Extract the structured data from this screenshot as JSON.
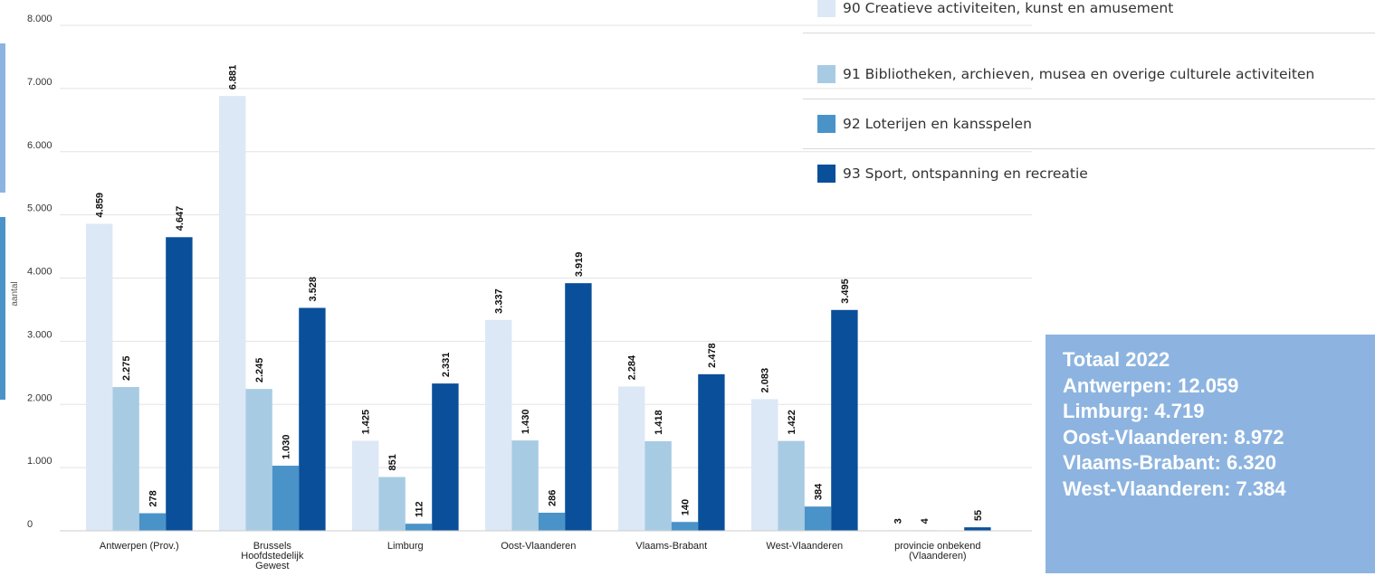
{
  "chart_data": {
    "type": "bar",
    "ylabel": "aantal",
    "ylim": [
      0,
      8000
    ],
    "yticks": [
      0,
      1000,
      2000,
      3000,
      4000,
      5000,
      6000,
      7000,
      8000
    ],
    "ytick_labels": [
      "0",
      "1.000",
      "2.000",
      "3.000",
      "4.000",
      "5.000",
      "6.000",
      "7.000",
      "8.000"
    ],
    "grid": true,
    "legend_position": "top-right",
    "categories": [
      [
        "Antwerpen (Prov.)"
      ],
      [
        "Brussels",
        "Hoofdstedelijk",
        "Gewest"
      ],
      [
        "Limburg"
      ],
      [
        "Oost-Vlaanderen"
      ],
      [
        "Vlaams-Brabant"
      ],
      [
        "West-Vlaanderen"
      ],
      [
        "provincie onbekend",
        "(Vlaanderen)"
      ]
    ],
    "series": [
      {
        "name": "90 Creatieve activiteiten, kunst en amusement",
        "color": "#dce8f5",
        "values": [
          4859,
          6881,
          1425,
          3337,
          2284,
          2083,
          3
        ],
        "labels": [
          "4.859",
          "6.881",
          "1.425",
          "3.337",
          "2.284",
          "2.083",
          "3"
        ]
      },
      {
        "name": "91 Bibliotheken, archieven, musea en overige culturele activiteiten",
        "color": "#a8cbe4",
        "values": [
          2275,
          2245,
          851,
          1430,
          1418,
          1422,
          4
        ],
        "labels": [
          "2.275",
          "2.245",
          "851",
          "1.430",
          "1.418",
          "1.422",
          "4"
        ]
      },
      {
        "name": "92 Loterijen en kansspelen",
        "color": "#4a93c9",
        "values": [
          278,
          1030,
          112,
          286,
          140,
          384,
          null
        ],
        "labels": [
          "278",
          "1.030",
          "112",
          "286",
          "140",
          "384",
          null
        ]
      },
      {
        "name": "93 Sport, ontspanning en recreatie",
        "color": "#0a4f9a",
        "values": [
          4647,
          3528,
          2331,
          3919,
          2478,
          3495,
          55
        ],
        "labels": [
          "4.647",
          "3.528",
          "2.331",
          "3.919",
          "2.478",
          "3.495",
          "55"
        ]
      }
    ]
  },
  "totals_box": {
    "color": "#8db4e0",
    "lines": [
      "Totaal 2022",
      "Antwerpen: 12.059",
      "Limburg: 4.719",
      "Oost-Vlaanderen: 8.972",
      "Vlaams-Brabant: 6.320",
      "West-Vlaanderen: 7.384"
    ]
  },
  "edge_accents": [
    "#8db4e0",
    "#4a93c9"
  ]
}
